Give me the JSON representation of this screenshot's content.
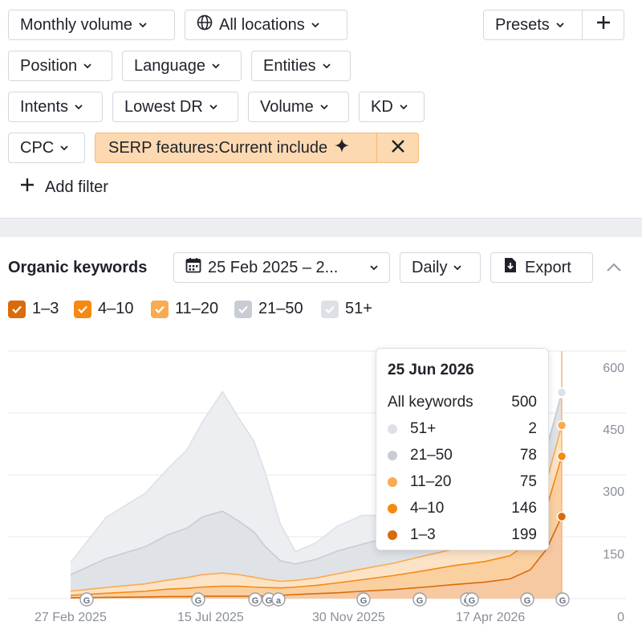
{
  "filters": {
    "monthly_volume": "Monthly volume",
    "all_locations": "All locations",
    "presets": "Presets",
    "position": "Position",
    "language": "Language",
    "entities": "Entities",
    "intents": "Intents",
    "lowest_dr": "Lowest DR",
    "volume": "Volume",
    "kd": "KD",
    "cpc": "CPC",
    "serp_features": "SERP features:Current include",
    "add_filter": "Add filter"
  },
  "section": {
    "title": "Organic keywords",
    "date_range": "25 Feb 2025 – 2...",
    "granularity": "Daily",
    "export": "Export"
  },
  "legend": [
    {
      "label": "1–3",
      "color": "#d96b0b"
    },
    {
      "label": "4–10",
      "color": "#f58a12"
    },
    {
      "label": "11–20",
      "color": "#f9ab52"
    },
    {
      "label": "21–50",
      "color": "#c8ccd3"
    },
    {
      "label": "51+",
      "color": "#dde1e6"
    }
  ],
  "tooltip": {
    "date": "25 Jun 2026",
    "total_label": "All keywords",
    "total_value": "500",
    "rows": [
      {
        "name": "51+",
        "value": "2",
        "color": "#dde1e6"
      },
      {
        "name": "21–50",
        "value": "78",
        "color": "#c8ccd3"
      },
      {
        "name": "11–20",
        "value": "75",
        "color": "#f9ab52"
      },
      {
        "name": "4–10",
        "value": "146",
        "color": "#f58a12"
      },
      {
        "name": "1–3",
        "value": "199",
        "color": "#d96b0b"
      }
    ]
  },
  "chart_data": {
    "type": "area",
    "stacked": true,
    "ylim": [
      0,
      600
    ],
    "yticks": [
      "600",
      "450",
      "300",
      "150",
      "0"
    ],
    "xticks": [
      "27 Feb 2025",
      "15 Jul 2025",
      "30 Nov 2025",
      "17 Apr 2026"
    ],
    "annotation_markers": [
      "G",
      "G",
      "G",
      "G",
      "a",
      "G",
      "G",
      "G",
      "G",
      "G",
      "G"
    ],
    "x": [
      "2025-02-25",
      "2025-04-01",
      "2025-05-10",
      "2025-06-01",
      "2025-06-20",
      "2025-07-05",
      "2025-07-25",
      "2025-08-10",
      "2025-08-25",
      "2025-09-05",
      "2025-09-20",
      "2025-10-05",
      "2025-10-25",
      "2025-11-15",
      "2025-12-10",
      "2026-01-10",
      "2026-02-10",
      "2026-03-10",
      "2026-04-10",
      "2026-05-05",
      "2026-05-25",
      "2026-06-10",
      "2026-06-25"
    ],
    "series": [
      {
        "name": "1–3",
        "values": [
          2,
          3,
          4,
          5,
          5,
          6,
          6,
          6,
          6,
          7,
          8,
          10,
          12,
          14,
          18,
          22,
          28,
          34,
          40,
          48,
          70,
          120,
          199
        ]
      },
      {
        "name": "4–10",
        "values": [
          6,
          10,
          14,
          18,
          20,
          22,
          24,
          24,
          22,
          20,
          18,
          18,
          20,
          24,
          28,
          34,
          40,
          46,
          50,
          56,
          70,
          100,
          146
        ]
      },
      {
        "name": "11–20",
        "values": [
          10,
          14,
          18,
          22,
          26,
          30,
          32,
          28,
          24,
          20,
          16,
          16,
          18,
          22,
          26,
          30,
          36,
          40,
          44,
          50,
          56,
          64,
          75
        ]
      },
      {
        "name": "21–50",
        "values": [
          40,
          70,
          90,
          110,
          120,
          140,
          150,
          130,
          110,
          80,
          50,
          40,
          45,
          55,
          60,
          65,
          70,
          72,
          74,
          76,
          78,
          78,
          78
        ]
      },
      {
        "name": "51+",
        "values": [
          30,
          100,
          130,
          160,
          190,
          230,
          290,
          250,
          220,
          180,
          90,
          30,
          40,
          60,
          70,
          50,
          35,
          25,
          20,
          15,
          10,
          5,
          2
        ]
      }
    ]
  }
}
